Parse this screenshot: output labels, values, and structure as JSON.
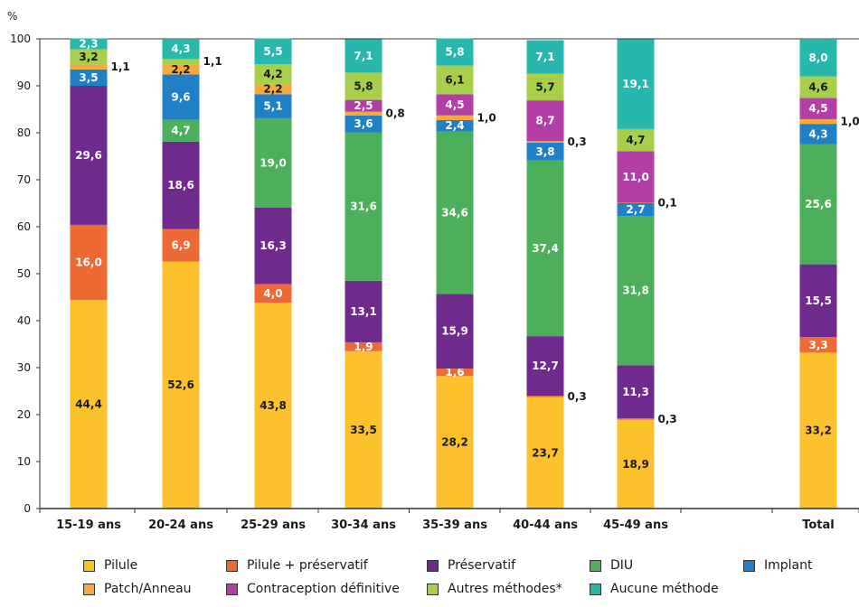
{
  "chart_data": {
    "type": "bar",
    "stacked": true,
    "ylabel": "%",
    "ylim": [
      0,
      100
    ],
    "yticks": [
      0,
      10,
      20,
      30,
      40,
      50,
      60,
      70,
      80,
      90,
      100
    ],
    "grid": false,
    "legend_position": "bottom",
    "categories": [
      "15-19 ans",
      "20-24 ans",
      "25-29 ans",
      "30-34 ans",
      "35-39 ans",
      "40-44 ans",
      "45-49 ans",
      "Total"
    ],
    "series": [
      {
        "name": "Pilule",
        "color": "#FBC22C",
        "values": [
          44.4,
          52.6,
          43.8,
          33.5,
          28.2,
          23.7,
          18.9,
          33.2
        ]
      },
      {
        "name": "Pilule + préservatif",
        "color": "#EE6A35",
        "values": [
          16.0,
          6.9,
          4.0,
          1.9,
          1.6,
          0.3,
          0.3,
          3.3
        ]
      },
      {
        "name": "Préservatif",
        "color": "#6E2B8D",
        "values": [
          29.6,
          18.6,
          16.3,
          13.1,
          15.9,
          12.7,
          11.3,
          15.5
        ]
      },
      {
        "name": "DIU",
        "color": "#4BAF5C",
        "values": [
          0,
          4.7,
          19.0,
          31.6,
          34.6,
          37.4,
          31.8,
          25.6
        ]
      },
      {
        "name": "Implant",
        "color": "#1F80C6",
        "values": [
          3.5,
          9.6,
          5.1,
          3.6,
          2.4,
          3.8,
          2.7,
          4.3
        ]
      },
      {
        "name": "Patch/Anneau",
        "color": "#F7A93B",
        "values": [
          1.1,
          2.2,
          2.2,
          0.8,
          1.0,
          0.3,
          0.1,
          1.0
        ]
      },
      {
        "name": "Contraception définitive",
        "color": "#B23EA6",
        "values": [
          0,
          0,
          0,
          2.5,
          4.5,
          8.7,
          11.0,
          4.5
        ]
      },
      {
        "name": "Autres méthodes*",
        "color": "#A9CF4A",
        "values": [
          3.2,
          1.1,
          4.2,
          5.8,
          6.1,
          5.7,
          4.7,
          4.6
        ]
      },
      {
        "name": "Aucune méthode",
        "color": "#27B7AC",
        "values": [
          2.3,
          4.3,
          5.5,
          7.1,
          5.8,
          7.1,
          19.1,
          8.0
        ]
      }
    ],
    "labels": [
      [
        "44,4",
        "16,0",
        "29,6",
        "",
        "3,5",
        "1,1",
        "",
        "3,2",
        "2,3"
      ],
      [
        "52,6",
        "6,9",
        "18,6",
        "4,7",
        "9,6",
        "2,2",
        "",
        "1,1",
        "4,3"
      ],
      [
        "43,8",
        "4,0",
        "16,3",
        "19,0",
        "5,1",
        "2,2",
        "",
        "4,2",
        "5,5"
      ],
      [
        "33,5",
        "1,9",
        "13,1",
        "31,6",
        "3,6",
        "0,8",
        "2,5",
        "5,8",
        "7,1"
      ],
      [
        "28,2",
        "1,6",
        "15,9",
        "34,6",
        "2,4",
        "1,0",
        "4,5",
        "6,1",
        "5,8"
      ],
      [
        "23,7",
        "0,3",
        "12,7",
        "37,4",
        "3,8",
        "0,3",
        "8,7",
        "5,7",
        "7,1"
      ],
      [
        "18,9",
        "0,3",
        "11,3",
        "31,8",
        "2,7",
        "0,1",
        "11,0",
        "4,7",
        "19,1"
      ],
      [
        "33,2",
        "3,3",
        "15,5",
        "25,6",
        "4,3",
        "1,0",
        "4,5",
        "4,6",
        "8,0"
      ]
    ]
  }
}
